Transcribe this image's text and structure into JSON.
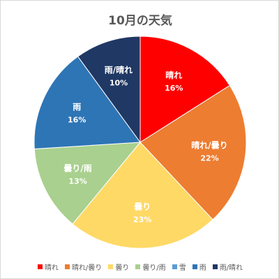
{
  "chart_data": {
    "type": "pie",
    "title": "10月の天気",
    "start_angle_deg": 0,
    "direction": "clockwise",
    "legend_position": "bottom",
    "categories": [
      "晴れ",
      "晴れ/曇り",
      "曇り",
      "曇り/雨",
      "雪",
      "雨",
      "雨/晴れ"
    ],
    "values": [
      16,
      22,
      23,
      13,
      0,
      16,
      10
    ],
    "data_labels": [
      {
        "name": "晴れ",
        "value": "16%"
      },
      {
        "name": "晴れ/曇り",
        "value": "22%"
      },
      {
        "name": "曇り",
        "value": "23%"
      },
      {
        "name": "曇り/雨",
        "value": "13%"
      },
      {
        "name": "雪",
        "value": ""
      },
      {
        "name": "雨",
        "value": "16%"
      },
      {
        "name": "雨/晴れ",
        "value": "10%"
      }
    ],
    "colors": [
      "#ff0000",
      "#ed7d31",
      "#ffd966",
      "#a9d08e",
      "#5b9bd5",
      "#2e75b6",
      "#203864"
    ],
    "label_colors": [
      "#ffffff",
      "#ffffff",
      "#ffffff",
      "#ffffff",
      "#ffffff",
      "#ffffff",
      "#ffffff"
    ]
  }
}
